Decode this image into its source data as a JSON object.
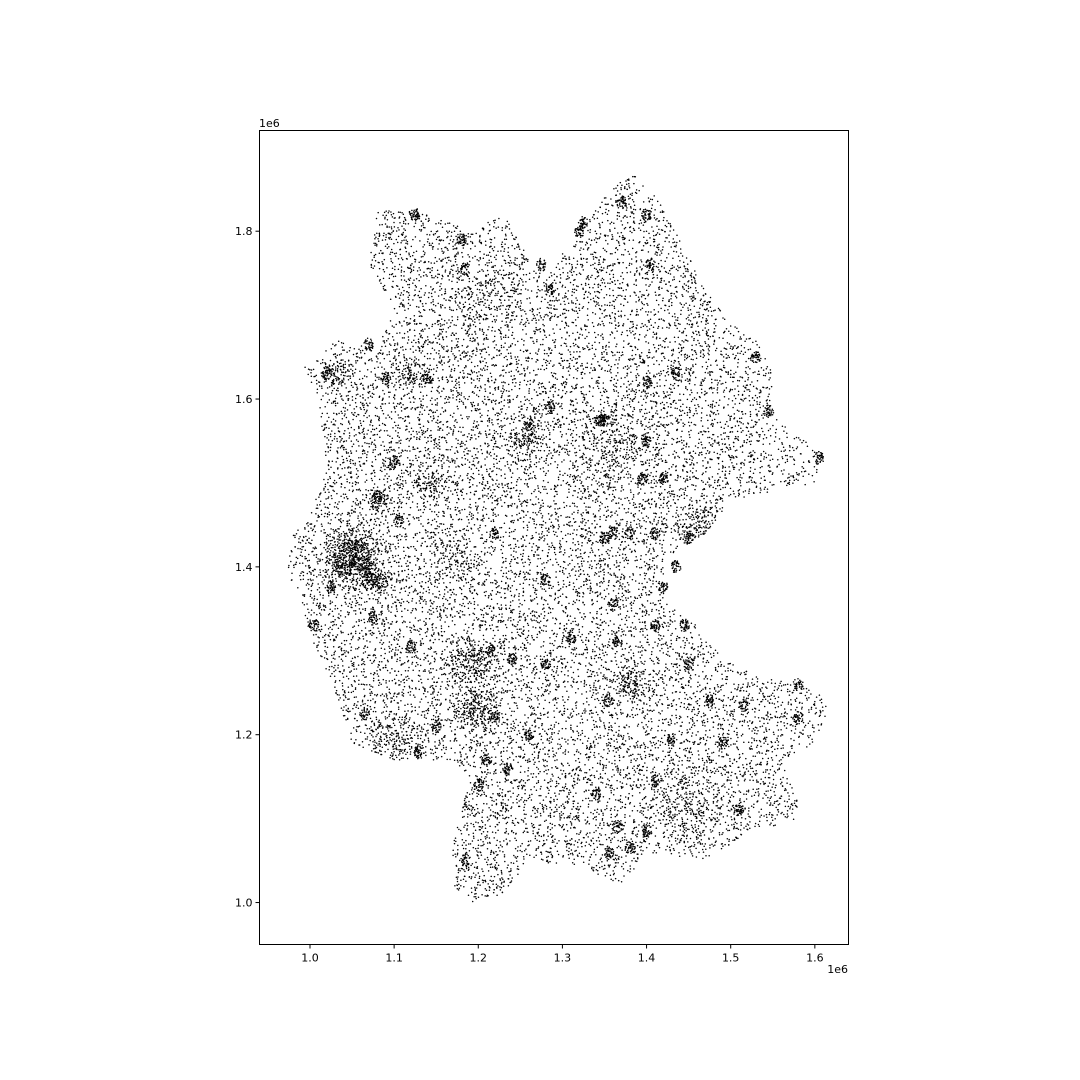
{
  "chart_data": {
    "type": "scatter",
    "title": "",
    "xlabel": "",
    "ylabel": "",
    "x_offset_label": "1e6",
    "y_offset_label": "1e6",
    "xlim": [
      0.94,
      1.64
    ],
    "ylim": [
      0.95,
      1.92
    ],
    "x_ticks": [
      {
        "value": 1.0,
        "label": "1.0"
      },
      {
        "value": 1.1,
        "label": "1.1"
      },
      {
        "value": 1.2,
        "label": "1.2"
      },
      {
        "value": 1.3,
        "label": "1.3"
      },
      {
        "value": 1.4,
        "label": "1.4"
      },
      {
        "value": 1.5,
        "label": "1.5"
      },
      {
        "value": 1.6,
        "label": "1.6"
      }
    ],
    "y_ticks": [
      {
        "value": 1.0,
        "label": "1.0"
      },
      {
        "value": 1.2,
        "label": "1.2"
      },
      {
        "value": 1.4,
        "label": "1.4"
      },
      {
        "value": 1.6,
        "label": "1.6"
      },
      {
        "value": 1.8,
        "label": "1.8"
      }
    ],
    "grid": false,
    "marker_color": "#000000",
    "series": [
      {
        "outline": [
          [
            0.98,
            1.44
          ],
          [
            1.0,
            1.46
          ],
          [
            1.02,
            1.52
          ],
          [
            1.01,
            1.6
          ],
          [
            0.99,
            1.64
          ],
          [
            1.03,
            1.67
          ],
          [
            1.08,
            1.66
          ],
          [
            1.1,
            1.71
          ],
          [
            1.07,
            1.76
          ],
          [
            1.08,
            1.83
          ],
          [
            1.14,
            1.82
          ],
          [
            1.19,
            1.8
          ],
          [
            1.23,
            1.82
          ],
          [
            1.26,
            1.77
          ],
          [
            1.28,
            1.74
          ],
          [
            1.31,
            1.79
          ],
          [
            1.35,
            1.84
          ],
          [
            1.38,
            1.87
          ],
          [
            1.4,
            1.86
          ],
          [
            1.43,
            1.81
          ],
          [
            1.47,
            1.73
          ],
          [
            1.5,
            1.69
          ],
          [
            1.53,
            1.67
          ],
          [
            1.55,
            1.63
          ],
          [
            1.55,
            1.58
          ],
          [
            1.59,
            1.55
          ],
          [
            1.61,
            1.53
          ],
          [
            1.6,
            1.5
          ],
          [
            1.55,
            1.49
          ],
          [
            1.5,
            1.48
          ],
          [
            1.47,
            1.44
          ],
          [
            1.42,
            1.41
          ],
          [
            1.42,
            1.36
          ],
          [
            1.46,
            1.33
          ],
          [
            1.49,
            1.29
          ],
          [
            1.53,
            1.27
          ],
          [
            1.58,
            1.26
          ],
          [
            1.62,
            1.24
          ],
          [
            1.6,
            1.19
          ],
          [
            1.56,
            1.17
          ],
          [
            1.58,
            1.12
          ],
          [
            1.58,
            1.1
          ],
          [
            1.55,
            1.09
          ],
          [
            1.53,
            1.09
          ],
          [
            1.47,
            1.05
          ],
          [
            1.4,
            1.06
          ],
          [
            1.37,
            1.02
          ],
          [
            1.33,
            1.04
          ],
          [
            1.26,
            1.05
          ],
          [
            1.23,
            1.01
          ],
          [
            1.19,
            1.0
          ],
          [
            1.17,
            1.02
          ],
          [
            1.17,
            1.07
          ],
          [
            1.19,
            1.15
          ],
          [
            1.17,
            1.17
          ],
          [
            1.1,
            1.17
          ],
          [
            1.05,
            1.19
          ],
          [
            1.03,
            1.25
          ],
          [
            1.0,
            1.32
          ],
          [
            0.99,
            1.36
          ],
          [
            0.97,
            1.4
          ]
        ],
        "clusters": [
          {
            "x": 1.05,
            "y": 1.42,
            "r": 0.022,
            "n": 380
          },
          {
            "x": 1.065,
            "y": 1.395,
            "r": 0.018,
            "n": 250
          },
          {
            "x": 1.035,
            "y": 1.4,
            "r": 0.015,
            "n": 150
          },
          {
            "x": 1.08,
            "y": 1.38,
            "r": 0.014,
            "n": 100
          },
          {
            "x": 1.2,
            "y": 1.23,
            "r": 0.02,
            "n": 200
          },
          {
            "x": 1.19,
            "y": 1.285,
            "r": 0.025,
            "n": 220
          },
          {
            "x": 1.38,
            "y": 1.26,
            "r": 0.018,
            "n": 150
          },
          {
            "x": 1.1,
            "y": 1.19,
            "r": 0.03,
            "n": 180
          },
          {
            "x": 1.26,
            "y": 1.55,
            "r": 0.018,
            "n": 120
          },
          {
            "x": 1.36,
            "y": 1.55,
            "r": 0.04,
            "n": 220
          },
          {
            "x": 1.47,
            "y": 1.445,
            "r": 0.03,
            "n": 200
          },
          {
            "x": 1.45,
            "y": 1.12,
            "r": 0.04,
            "n": 220
          },
          {
            "x": 1.03,
            "y": 1.63,
            "r": 0.015,
            "n": 80
          },
          {
            "x": 1.12,
            "y": 1.63,
            "r": 0.015,
            "n": 80
          },
          {
            "x": 1.08,
            "y": 1.48,
            "r": 0.012,
            "n": 70
          },
          {
            "x": 1.14,
            "y": 1.5,
            "r": 0.02,
            "n": 90
          },
          {
            "x": 1.21,
            "y": 1.72,
            "r": 0.04,
            "n": 160
          },
          {
            "x": 1.17,
            "y": 1.41,
            "r": 0.03,
            "n": 100
          }
        ],
        "blobs": [
          [
            1.07,
            1.665
          ],
          [
            1.09,
            1.625
          ],
          [
            1.02,
            1.63
          ],
          [
            1.1,
            1.525
          ],
          [
            1.08,
            1.485
          ],
          [
            1.105,
            1.455
          ],
          [
            1.075,
            1.34
          ],
          [
            1.025,
            1.375
          ],
          [
            1.005,
            1.33
          ],
          [
            1.12,
            1.305
          ],
          [
            1.065,
            1.225
          ],
          [
            1.15,
            1.21
          ],
          [
            1.13,
            1.18
          ],
          [
            1.22,
            1.22
          ],
          [
            1.21,
            1.17
          ],
          [
            1.235,
            1.16
          ],
          [
            1.2,
            1.14
          ],
          [
            1.185,
            1.05
          ],
          [
            1.26,
            1.2
          ],
          [
            1.24,
            1.29
          ],
          [
            1.22,
            1.44
          ],
          [
            1.215,
            1.3
          ],
          [
            1.28,
            1.285
          ],
          [
            1.31,
            1.315
          ],
          [
            1.28,
            1.385
          ],
          [
            1.35,
            1.435
          ],
          [
            1.36,
            1.44
          ],
          [
            1.38,
            1.44
          ],
          [
            1.4,
            1.55
          ],
          [
            1.395,
            1.505
          ],
          [
            1.42,
            1.505
          ],
          [
            1.41,
            1.44
          ],
          [
            1.45,
            1.435
          ],
          [
            1.435,
            1.4
          ],
          [
            1.42,
            1.375
          ],
          [
            1.41,
            1.33
          ],
          [
            1.36,
            1.355
          ],
          [
            1.365,
            1.31
          ],
          [
            1.445,
            1.33
          ],
          [
            1.45,
            1.285
          ],
          [
            1.475,
            1.24
          ],
          [
            1.515,
            1.235
          ],
          [
            1.49,
            1.19
          ],
          [
            1.43,
            1.195
          ],
          [
            1.41,
            1.145
          ],
          [
            1.34,
            1.13
          ],
          [
            1.355,
            1.06
          ],
          [
            1.365,
            1.09
          ],
          [
            1.4,
            1.085
          ],
          [
            1.38,
            1.065
          ],
          [
            1.51,
            1.11
          ],
          [
            1.58,
            1.22
          ],
          [
            1.58,
            1.26
          ],
          [
            1.53,
            1.65
          ],
          [
            1.545,
            1.585
          ],
          [
            1.605,
            1.53
          ],
          [
            1.435,
            1.63
          ],
          [
            1.4,
            1.62
          ],
          [
            1.345,
            1.575
          ],
          [
            1.285,
            1.59
          ],
          [
            1.285,
            1.73
          ],
          [
            1.275,
            1.76
          ],
          [
            1.32,
            1.8
          ],
          [
            1.325,
            1.81
          ],
          [
            1.37,
            1.835
          ],
          [
            1.4,
            1.82
          ],
          [
            1.405,
            1.76
          ],
          [
            1.18,
            1.79
          ],
          [
            1.185,
            1.755
          ],
          [
            1.125,
            1.82
          ],
          [
            1.14,
            1.625
          ],
          [
            1.355,
            1.24
          ],
          [
            1.35,
            1.575
          ],
          [
            1.26,
            1.57
          ]
        ],
        "count": 16000,
        "seed": 20240611
      }
    ]
  }
}
